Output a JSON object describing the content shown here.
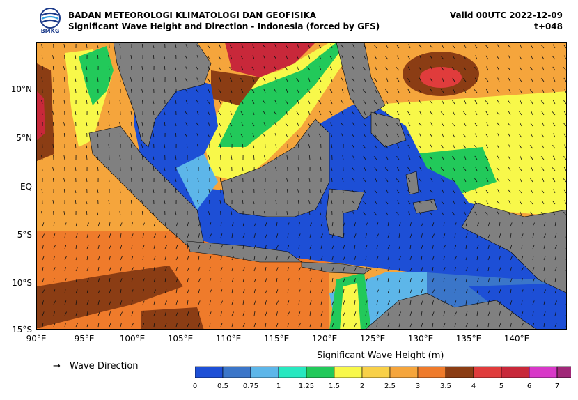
{
  "header": {
    "logo_text": "BMKG",
    "title_line1": "BADAN METEOROLOGI KLIMATOLOGI DAN GEOFISIKA",
    "title_line2": "Significant Wave Height and Direction - Indonesia (forced by GFS)",
    "valid": "Valid 00UTC 2022-12-09",
    "forecast_step": "t+048"
  },
  "map": {
    "lat_labels": [
      "10°N",
      "5°N",
      "EQ",
      "5°S",
      "10°S",
      "15°S"
    ],
    "lon_labels": [
      "90°E",
      "95°E",
      "100°E",
      "105°E",
      "110°E",
      "115°E",
      "120°E",
      "125°E",
      "130°E",
      "135°E",
      "140°E"
    ],
    "extent": {
      "lon": [
        90,
        145
      ],
      "lat": [
        -15,
        14.5
      ]
    },
    "land_color": "#808080"
  },
  "legend": {
    "arrow_symbol": "→",
    "label": "Wave Direction"
  },
  "colorbar": {
    "title": "Significant Wave Height (m)",
    "ticks": [
      "0",
      "0.5",
      "0.75",
      "1",
      "1.25",
      "1.5",
      "2",
      "2.5",
      "3",
      "3.5",
      "4",
      "5",
      "6",
      "7"
    ],
    "colors": [
      "#1d4fd6",
      "#3b76c9",
      "#5db6e9",
      "#27e8c0",
      "#22c95a",
      "#f8f84a",
      "#f8d048",
      "#f5a53c",
      "#ef7b2b",
      "#8b3d14",
      "#e03c3c",
      "#c8283a",
      "#d838c8",
      "#a02878"
    ]
  }
}
